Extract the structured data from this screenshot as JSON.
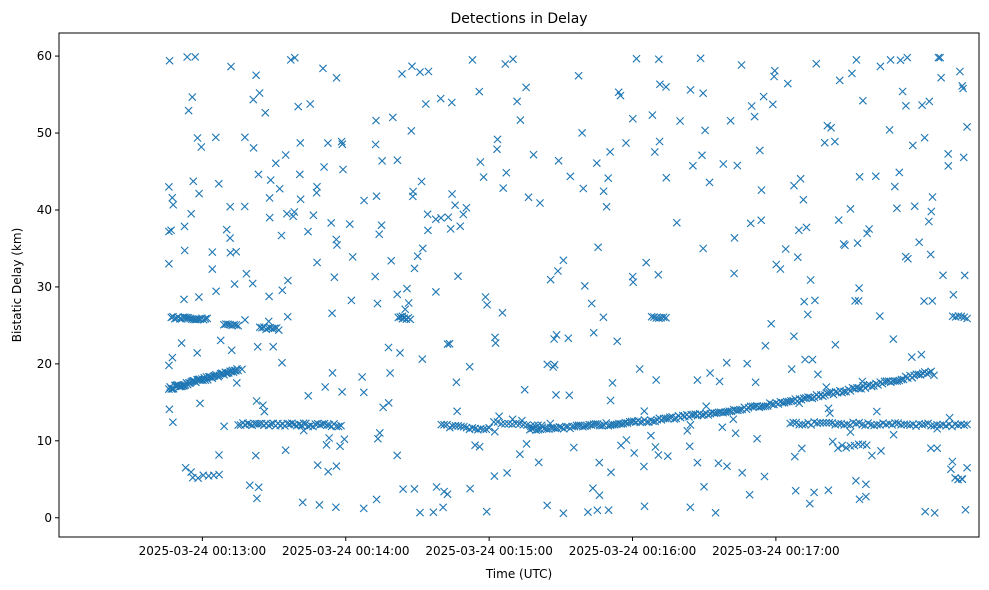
{
  "chart_data": {
    "type": "scatter",
    "title": "Detections in Delay",
    "xlabel": "Time (UTC)",
    "ylabel": "Bistatic Delay (km)",
    "xlim": [
      0,
      385
    ],
    "ylim": [
      -2.5,
      63
    ],
    "x_unit": "seconds after 2025-03-24 00:12:00",
    "x_ticks": [
      {
        "value": 60,
        "label": "2025-03-24 00:13:00"
      },
      {
        "value": 120,
        "label": "2025-03-24 00:14:00"
      },
      {
        "value": 180,
        "label": "2025-03-24 00:15:00"
      },
      {
        "value": 240,
        "label": "2025-03-24 00:16:00"
      },
      {
        "value": 300,
        "label": "2025-03-24 00:17:00"
      }
    ],
    "y_ticks": [
      0,
      10,
      20,
      30,
      40,
      50,
      60
    ],
    "marker": "x",
    "color": "#1f77b4",
    "tracks": [
      {
        "name": "track-a",
        "t_start": 46,
        "t_end": 75,
        "y_start": 16.8,
        "y_end": 19.2,
        "curve": 0,
        "count": 60,
        "jitter": 0.2
      },
      {
        "name": "track-b",
        "t_start": 182,
        "t_end": 202,
        "y_start": 12.4,
        "y_end": 11.9,
        "curve": 0,
        "count": 14,
        "jitter": 0.15
      },
      {
        "name": "track-c",
        "t_start": 197,
        "t_end": 365,
        "y_start": 11.5,
        "y_end": 19.0,
        "curve": 0.7,
        "count": 190,
        "jitter": 0.2
      },
      {
        "name": "track-d",
        "t_start": 75,
        "t_end": 118,
        "y_start": 12.2,
        "y_end": 12.0,
        "curve": 0,
        "count": 45,
        "jitter": 0.2
      },
      {
        "name": "track-e",
        "t_start": 160,
        "t_end": 180,
        "y_start": 12.0,
        "y_end": 11.5,
        "curve": 0,
        "count": 18,
        "jitter": 0.2
      },
      {
        "name": "track-f",
        "t_start": 306,
        "t_end": 380,
        "y_start": 12.3,
        "y_end": 12.0,
        "curve": 0,
        "count": 60,
        "jitter": 0.2
      },
      {
        "name": "track-g",
        "t_start": 47,
        "t_end": 62,
        "y_start": 26.0,
        "y_end": 25.8,
        "curve": 0,
        "count": 22,
        "jitter": 0.15
      },
      {
        "name": "track-h",
        "t_start": 69,
        "t_end": 75,
        "y_start": 25.1,
        "y_end": 25.0,
        "curve": 0,
        "count": 8,
        "jitter": 0.15
      },
      {
        "name": "track-i",
        "t_start": 84,
        "t_end": 92,
        "y_start": 24.7,
        "y_end": 24.5,
        "curve": 0,
        "count": 10,
        "jitter": 0.15
      },
      {
        "name": "track-j",
        "t_start": 142,
        "t_end": 147,
        "y_start": 26.0,
        "y_end": 25.8,
        "curve": 0,
        "count": 7,
        "jitter": 0.15
      },
      {
        "name": "track-k",
        "t_start": 248,
        "t_end": 254,
        "y_start": 26.1,
        "y_end": 26.0,
        "curve": 0,
        "count": 7,
        "jitter": 0.15
      },
      {
        "name": "track-l",
        "t_start": 374,
        "t_end": 380,
        "y_start": 26.1,
        "y_end": 26.0,
        "curve": 0,
        "count": 6,
        "jitter": 0.15
      },
      {
        "name": "track-m",
        "t_start": 56,
        "t_end": 67,
        "y_start": 5.3,
        "y_end": 5.9,
        "curve": 0,
        "count": 6,
        "jitter": 0.3
      },
      {
        "name": "track-n",
        "t_start": 326,
        "t_end": 338,
        "y_start": 9.2,
        "y_end": 9.5,
        "curve": 0,
        "count": 8,
        "jitter": 0.2
      }
    ],
    "clutter": {
      "count": 440,
      "t_min": 46,
      "t_max": 382,
      "y_min": 0.5,
      "y_max": 60,
      "seed": 20250324
    },
    "plotted_points": [
      {
        "t": 46.3,
        "y": 59.4
      },
      {
        "t": 57.0,
        "y": 59.9
      },
      {
        "t": 97.0,
        "y": 59.5
      },
      {
        "t": 46.0,
        "y": 43.0
      },
      {
        "t": 46.0,
        "y": 37.2
      },
      {
        "t": 46.0,
        "y": 33.0
      },
      {
        "t": 46.0,
        "y": 19.8
      },
      {
        "t": 46.2,
        "y": 14.1
      },
      {
        "t": 53.0,
        "y": 6.5
      },
      {
        "t": 139.0,
        "y": 33.4
      },
      {
        "t": 158.0,
        "y": 4.0
      },
      {
        "t": 173.0,
        "y": 59.5
      },
      {
        "t": 179.0,
        "y": 0.8
      },
      {
        "t": 190.0,
        "y": 59.6
      },
      {
        "t": 251.0,
        "y": 59.6
      },
      {
        "t": 245.0,
        "y": 1.5
      },
      {
        "t": 254.0,
        "y": 56.0
      },
      {
        "t": 348.0,
        "y": 59.5
      },
      {
        "t": 355.0,
        "y": 59.8
      },
      {
        "t": 368.0,
        "y": 59.8
      },
      {
        "t": 377.0,
        "y": 58.0
      },
      {
        "t": 380.0,
        "y": 50.8
      },
      {
        "t": 379.0,
        "y": 31.5
      },
      {
        "t": 380.0,
        "y": 6.5
      },
      {
        "t": 378.0,
        "y": 5.0
      },
      {
        "t": 335.0,
        "y": 2.4
      },
      {
        "t": 316.0,
        "y": 3.3
      },
      {
        "t": 289.0,
        "y": 3.0
      },
      {
        "t": 102.0,
        "y": 2.0
      },
      {
        "t": 230.0,
        "y": 1.0
      }
    ]
  }
}
